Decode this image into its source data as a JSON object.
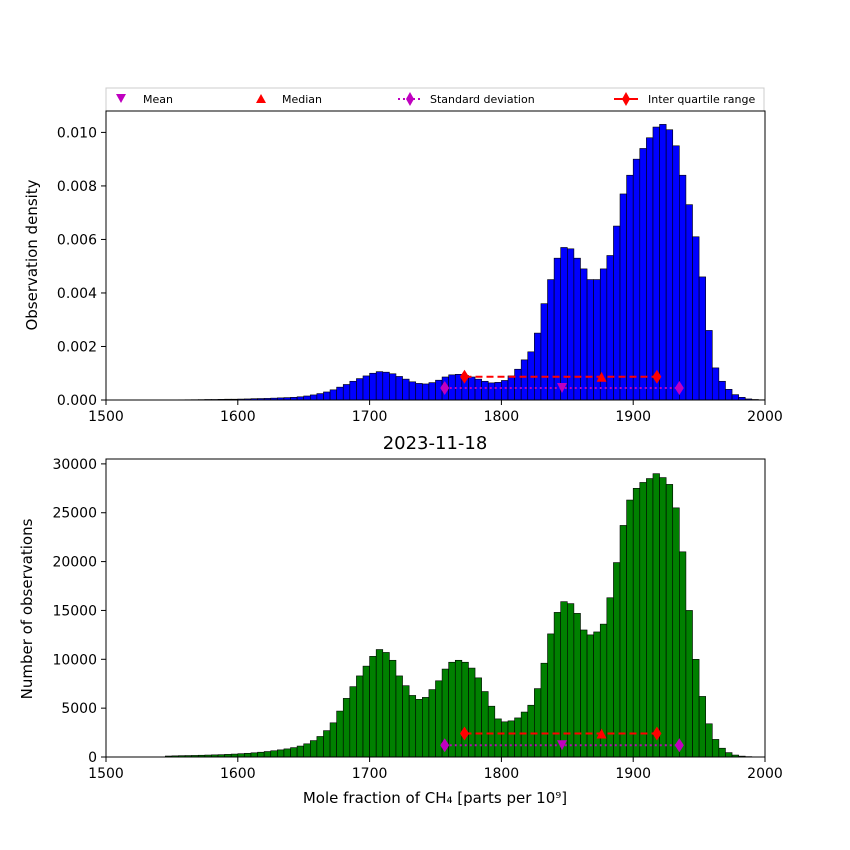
{
  "legend": {
    "entries": [
      {
        "label": "Mean",
        "marker": "triangle-down",
        "color": "#bf00bf"
      },
      {
        "label": "Median",
        "marker": "triangle-up",
        "color": "#ff0000"
      },
      {
        "label": "Standard deviation",
        "marker": "diamond",
        "line": "dotted",
        "color": "#bf00bf"
      },
      {
        "label": "Inter quartile range",
        "marker": "diamond",
        "line": "solid",
        "color": "#ff0000"
      }
    ]
  },
  "chart_data": [
    {
      "type": "bar",
      "subtype": "histogram",
      "title": "",
      "xlabel": "",
      "ylabel": "Observation density",
      "xlim": [
        1500,
        2000
      ],
      "ylim": [
        0,
        0.0108
      ],
      "xticks": [
        "1500",
        "1600",
        "1700",
        "1800",
        "1900",
        "2000"
      ],
      "yticks": [
        "0.000",
        "0.002",
        "0.004",
        "0.006",
        "0.008",
        "0.010"
      ],
      "ytick_values": [
        0,
        0.002,
        0.004,
        0.006,
        0.008,
        0.01
      ],
      "color": "#0000ff",
      "bin_start": 1545,
      "bin_width": 5,
      "values": [
        5e-06,
        5e-06,
        8e-06,
        1e-05,
        1.2e-05,
        1.5e-05,
        2e-05,
        2e-05,
        2.5e-05,
        3e-05,
        3e-05,
        3.5e-05,
        4e-05,
        5e-05,
        5.5e-05,
        6e-05,
        7e-05,
        8e-05,
        9e-05,
        0.0001,
        0.00012,
        0.00015,
        0.00019,
        0.00024,
        0.0003,
        0.00038,
        0.00048,
        0.00058,
        0.0007,
        0.0008,
        0.0009,
        0.001,
        0.00106,
        0.00104,
        0.00098,
        0.00088,
        0.00078,
        0.00068,
        0.00062,
        0.0006,
        0.00065,
        0.00074,
        0.00086,
        0.00094,
        0.00096,
        0.00092,
        0.00086,
        0.00078,
        0.0007,
        0.00064,
        0.00066,
        0.00073,
        0.0009,
        0.00115,
        0.0015,
        0.0018,
        0.0025,
        0.0036,
        0.0045,
        0.0053,
        0.0057,
        0.00565,
        0.0053,
        0.0049,
        0.0045,
        0.0045,
        0.0049,
        0.0054,
        0.0065,
        0.0077,
        0.0084,
        0.009,
        0.0094,
        0.0098,
        0.0102,
        0.0103,
        0.0101,
        0.0095,
        0.0084,
        0.0073,
        0.0061,
        0.0046,
        0.0026,
        0.0012,
        0.0007,
        0.0004,
        0.0002,
        0.0001,
        4e-05,
        2e-05,
        1e-05
      ],
      "stats": {
        "mean": {
          "x": 1846,
          "y": 0.00045
        },
        "median": {
          "x": 1876,
          "y": 0.00087
        },
        "std_range": [
          1757,
          1935
        ],
        "std_y": 0.00045,
        "iqr_range": [
          1772,
          1918
        ],
        "iqr_y": 0.00087
      }
    },
    {
      "type": "bar",
      "subtype": "histogram",
      "title": "2023-11-18",
      "xlabel": "Mole fraction of CH₄ [parts per 10⁹]",
      "ylabel": "Number of observations",
      "xlim": [
        1500,
        2000
      ],
      "ylim": [
        0,
        30500
      ],
      "xticks": [
        "1500",
        "1600",
        "1700",
        "1800",
        "1900",
        "2000"
      ],
      "yticks": [
        "0",
        "5000",
        "10000",
        "15000",
        "20000",
        "25000",
        "30000"
      ],
      "ytick_values": [
        0,
        5000,
        10000,
        15000,
        20000,
        25000,
        30000
      ],
      "color": "#008000",
      "bin_start": 1545,
      "bin_width": 5,
      "values": [
        100,
        120,
        140,
        150,
        160,
        180,
        200,
        220,
        240,
        270,
        300,
        340,
        380,
        430,
        490,
        560,
        640,
        730,
        830,
        960,
        1120,
        1350,
        1680,
        2100,
        2700,
        3500,
        4700,
        6000,
        7200,
        8300,
        9300,
        10300,
        11000,
        10700,
        9900,
        8300,
        7300,
        6300,
        5900,
        6100,
        6900,
        7800,
        9000,
        9700,
        9900,
        9700,
        9100,
        8100,
        6700,
        5200,
        3900,
        3600,
        3700,
        4000,
        4600,
        5300,
        7000,
        9600,
        12600,
        14800,
        15900,
        15700,
        14700,
        13000,
        12500,
        12800,
        13600,
        16300,
        19900,
        23700,
        26300,
        27500,
        28100,
        28500,
        29000,
        28600,
        27900,
        25500,
        21000,
        15000,
        10000,
        6200,
        3400,
        1800,
        900,
        450,
        200,
        90,
        40,
        20,
        10
      ],
      "stats": {
        "mean": {
          "x": 1846,
          "y": 1200
        },
        "median": {
          "x": 1876,
          "y": 2400
        },
        "std_range": [
          1757,
          1935
        ],
        "std_y": 1200,
        "iqr_range": [
          1772,
          1918
        ],
        "iqr_y": 2400
      }
    }
  ]
}
